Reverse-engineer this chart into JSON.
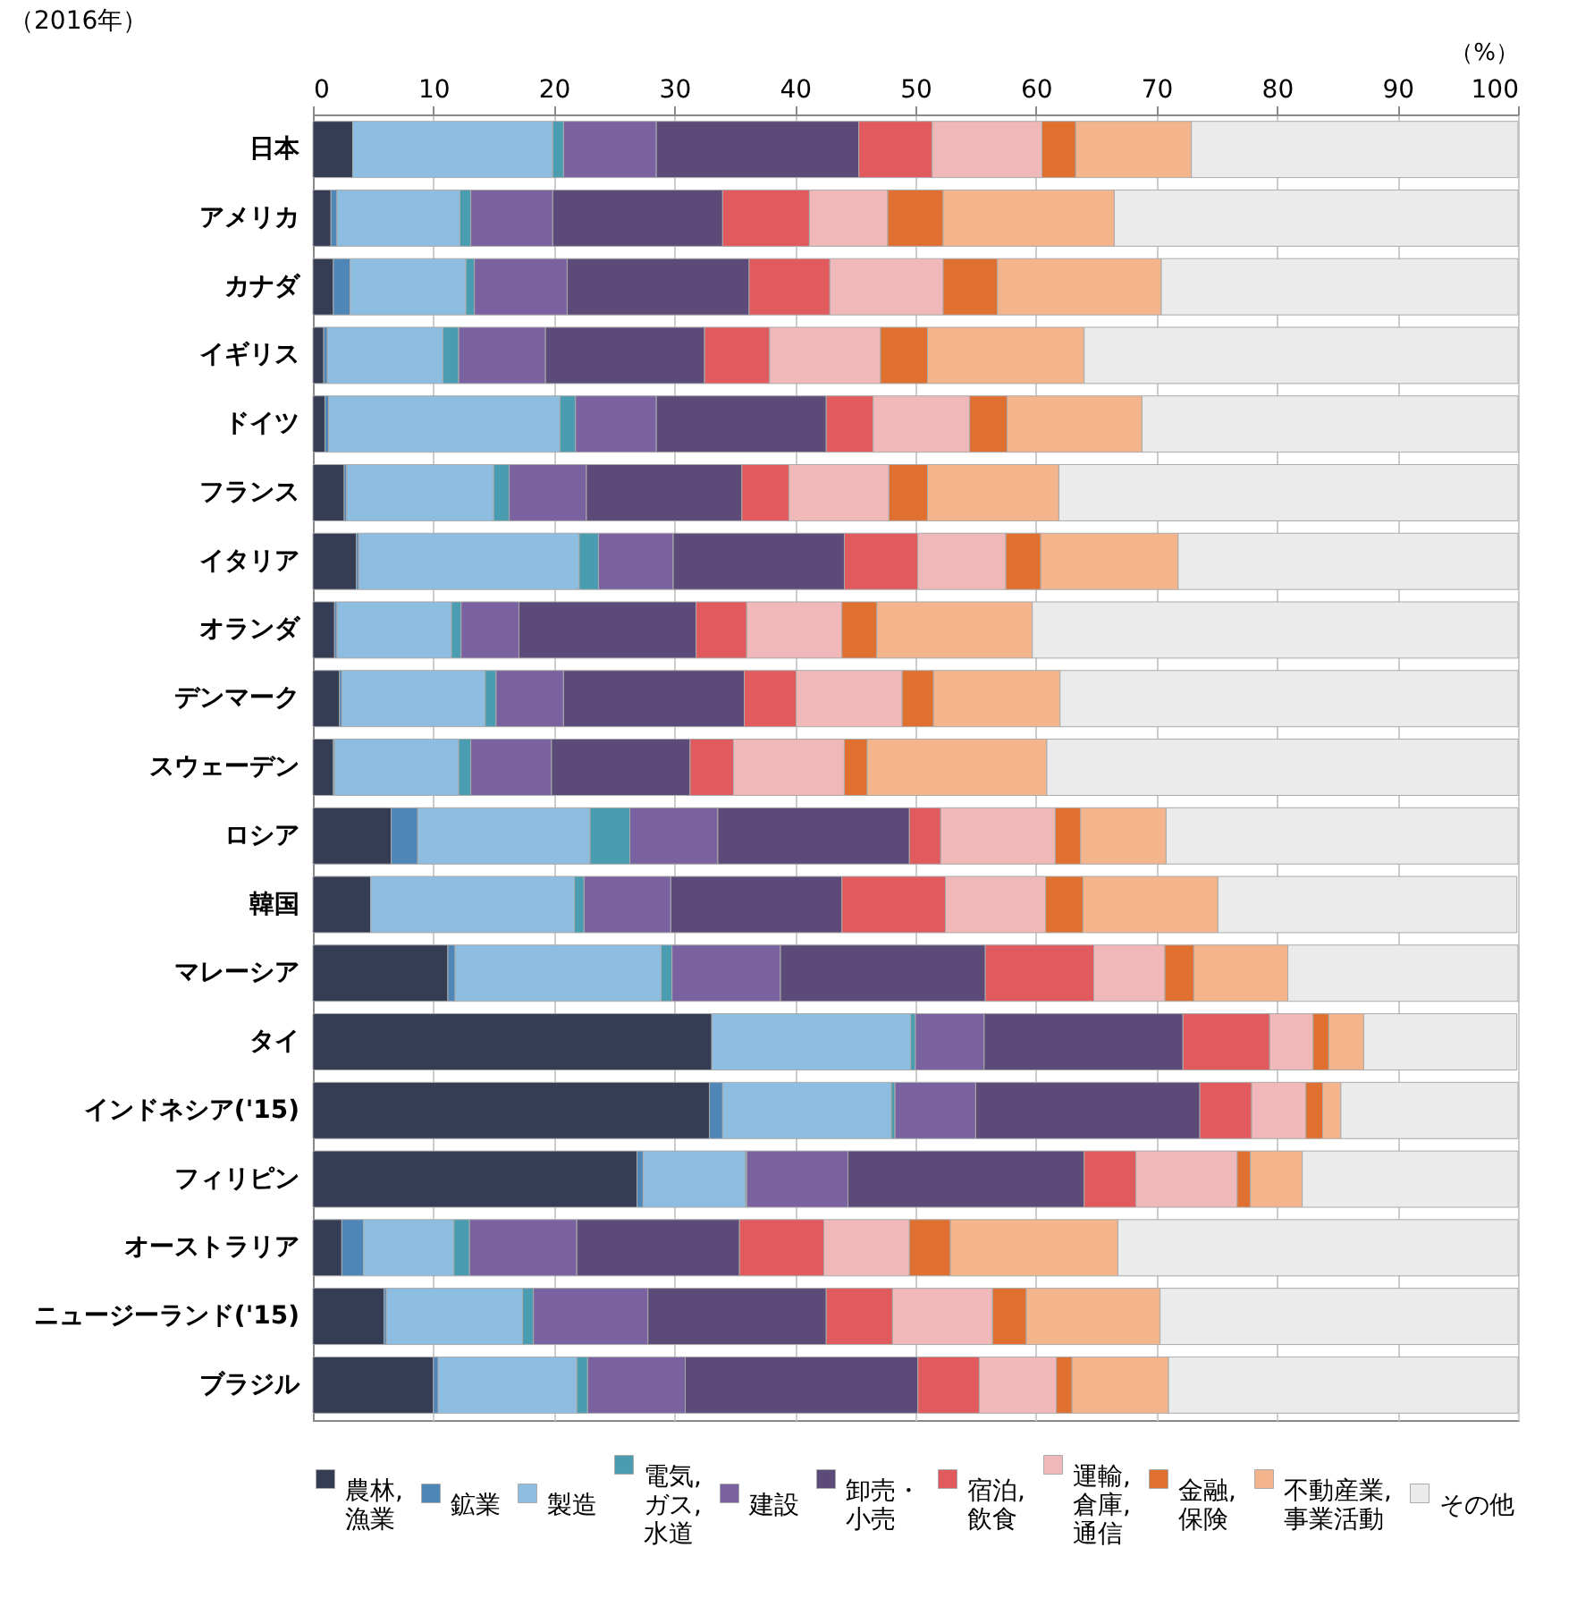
{
  "chart_data": {
    "type": "bar",
    "orientation": "horizontal",
    "stacked": true,
    "title": "（2016年）",
    "xlabel": "（%）",
    "categories": [
      "日本",
      "アメリカ",
      "カナダ",
      "イギリス",
      "ドイツ",
      "フランス",
      "イタリア",
      "オランダ",
      "デンマーク",
      "スウェーデン",
      "ロシア",
      "韓国",
      "マレーシア",
      "タイ",
      "インドネシア('15)",
      "フィリピン",
      "オーストラリア",
      "ニュージーランド('15)",
      "ブラジル"
    ],
    "series": [
      {
        "name": "農林,\n漁業",
        "color": "#353d55",
        "values": [
          3.3,
          1.5,
          1.7,
          0.9,
          1.0,
          2.6,
          3.6,
          1.8,
          2.2,
          1.7,
          6.5,
          4.8,
          11.2,
          33.1,
          32.9,
          26.9,
          2.4,
          5.9,
          10.0
        ]
      },
      {
        "name": "鉱業",
        "color": "#4f86b8",
        "values": [
          null,
          0.5,
          1.4,
          0.3,
          0.3,
          0.2,
          0.2,
          0.2,
          0.2,
          0.1,
          2.2,
          null,
          0.6,
          null,
          1.1,
          0.5,
          1.8,
          0.2,
          0.4
        ]
      },
      {
        "name": "製造",
        "color": "#8dbde0",
        "values": [
          16.6,
          10.2,
          9.6,
          9.6,
          19.2,
          12.2,
          18.3,
          9.5,
          11.9,
          10.3,
          14.3,
          16.9,
          17.1,
          16.5,
          14.0,
          8.5,
          7.5,
          11.3,
          11.5
        ]
      },
      {
        "name": "電気,\nガス,\n水道",
        "color": "#4a9db0",
        "values": [
          0.9,
          0.9,
          0.7,
          1.3,
          1.3,
          1.3,
          1.6,
          0.8,
          0.9,
          1.0,
          3.3,
          0.8,
          0.9,
          0.4,
          0.3,
          0.1,
          1.3,
          0.9,
          0.9
        ]
      },
      {
        "name": "建設",
        "color": "#7a62a0",
        "values": [
          7.7,
          6.8,
          7.7,
          7.2,
          6.7,
          6.4,
          6.2,
          4.8,
          5.6,
          6.7,
          7.3,
          7.2,
          9.0,
          5.7,
          6.7,
          8.4,
          8.9,
          9.5,
          8.1
        ]
      },
      {
        "name": "卸売・小売",
        "color": "#5c4a78",
        "values": [
          16.8,
          14.1,
          15.1,
          13.2,
          14.1,
          12.9,
          14.2,
          14.7,
          15.0,
          11.5,
          15.9,
          14.2,
          17.0,
          16.5,
          18.6,
          19.6,
          13.5,
          14.8,
          19.3
        ]
      },
      {
        "name": "宿泊,\n飲食",
        "color": "#e05a5e",
        "values": [
          6.1,
          7.2,
          6.7,
          5.4,
          3.9,
          3.9,
          6.1,
          4.2,
          4.3,
          3.6,
          2.6,
          8.6,
          9.0,
          7.2,
          4.3,
          4.3,
          7.0,
          5.5,
          5.1
        ]
      },
      {
        "name": "運輸,\n倉庫,\n通信",
        "color": "#f0b8b8",
        "values": [
          9.1,
          6.5,
          9.4,
          9.2,
          8.0,
          8.3,
          7.3,
          7.9,
          8.8,
          9.2,
          9.5,
          8.3,
          5.9,
          3.6,
          4.5,
          8.4,
          7.1,
          8.3,
          6.4
        ]
      },
      {
        "name": "金融,\n保険",
        "color": "#e07030",
        "values": [
          2.8,
          4.6,
          4.5,
          3.9,
          3.1,
          3.2,
          2.9,
          2.9,
          2.6,
          1.9,
          2.1,
          3.1,
          2.4,
          1.3,
          1.4,
          1.1,
          3.4,
          2.8,
          1.3
        ]
      },
      {
        "name": "不動産業,\n事業活動",
        "color": "#f4b48c",
        "values": [
          9.6,
          14.2,
          13.6,
          13.0,
          11.2,
          10.9,
          11.4,
          12.9,
          10.5,
          14.9,
          7.1,
          11.2,
          7.8,
          2.9,
          1.5,
          4.3,
          13.9,
          11.1,
          8.0
        ]
      },
      {
        "name": "その他",
        "color": "#ebebeb",
        "values": [
          27.1,
          33.5,
          29.6,
          36.0,
          31.2,
          38.1,
          28.2,
          40.3,
          38.0,
          39.1,
          29.2,
          24.8,
          19.1,
          12.7,
          14.7,
          17.9,
          33.2,
          29.7,
          29.0
        ]
      }
    ],
    "xlim": [
      0,
      100
    ],
    "xticks": [
      0,
      10,
      20,
      30,
      40,
      50,
      60,
      70,
      80,
      90,
      100
    ],
    "grid": "x",
    "legend": "bottom"
  }
}
